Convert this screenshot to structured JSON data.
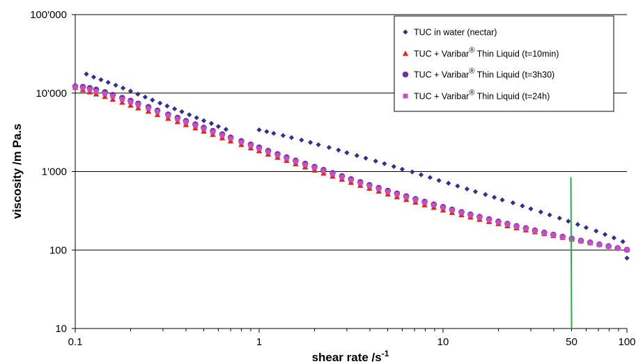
{
  "chart_data": {
    "type": "scatter",
    "xscale": "log",
    "yscale": "log",
    "xlim": [
      0.1,
      100
    ],
    "ylim": [
      10,
      100000
    ],
    "x_ticks": [
      0.1,
      1,
      10,
      50,
      100
    ],
    "x_tick_labels": [
      "0.1",
      "1",
      "10",
      "50",
      "100"
    ],
    "y_ticks": [
      10,
      100,
      1000,
      10000,
      100000
    ],
    "y_tick_labels": [
      "10",
      "100",
      "1'000",
      "10'000",
      "100'000"
    ],
    "xlabel": "shear rate /s",
    "xlabel_sup": "-1",
    "ylabel": "viscosity /m Pa.s",
    "grid": "horizontal",
    "legend_position": "top-right",
    "legend_text_registered": "®",
    "reference_line": {
      "x": 50,
      "y_from": 18,
      "y_to": 850,
      "color": "#22b14c"
    },
    "series": [
      {
        "name": "TUC in water (nectar)",
        "name_parts": [
          "TUC in water (nectar)"
        ],
        "marker": "diamond",
        "color": "#2e3192",
        "points": [
          [
            0.115,
            17500
          ],
          [
            0.126,
            16000
          ],
          [
            0.138,
            14800
          ],
          [
            0.151,
            13700
          ],
          [
            0.166,
            12600
          ],
          [
            0.182,
            11600
          ],
          [
            0.2,
            10600
          ],
          [
            0.219,
            9700
          ],
          [
            0.24,
            8900
          ],
          [
            0.263,
            8150
          ],
          [
            0.289,
            7450
          ],
          [
            0.316,
            6850
          ],
          [
            0.347,
            6300
          ],
          [
            0.38,
            5800
          ],
          [
            0.417,
            5300
          ],
          [
            0.457,
            4850
          ],
          [
            0.5,
            4450
          ],
          [
            0.55,
            4100
          ],
          [
            0.6,
            3750
          ],
          [
            0.66,
            3450
          ],
          [
            1.0,
            3400
          ],
          [
            1.1,
            3230
          ],
          [
            1.2,
            3070
          ],
          [
            1.35,
            2880
          ],
          [
            1.5,
            2710
          ],
          [
            1.7,
            2520
          ],
          [
            1.9,
            2350
          ],
          [
            2.1,
            2200
          ],
          [
            2.4,
            2030
          ],
          [
            2.7,
            1880
          ],
          [
            3.0,
            1740
          ],
          [
            3.4,
            1600
          ],
          [
            3.8,
            1480
          ],
          [
            4.3,
            1360
          ],
          [
            4.8,
            1260
          ],
          [
            5.4,
            1160
          ],
          [
            6.0,
            1070
          ],
          [
            6.8,
            990
          ],
          [
            7.6,
            910
          ],
          [
            8.5,
            840
          ],
          [
            9.5,
            770
          ],
          [
            10.7,
            710
          ],
          [
            12.0,
            655
          ],
          [
            13.5,
            600
          ],
          [
            15.0,
            555
          ],
          [
            17.0,
            510
          ],
          [
            19.0,
            470
          ],
          [
            21.0,
            435
          ],
          [
            24.0,
            400
          ],
          [
            27.0,
            365
          ],
          [
            30.0,
            335
          ],
          [
            34.0,
            305
          ],
          [
            38.0,
            280
          ],
          [
            43.0,
            255
          ],
          [
            48.0,
            233
          ],
          [
            54.0,
            212
          ],
          [
            60.0,
            193
          ],
          [
            68.0,
            175
          ],
          [
            76.0,
            158
          ],
          [
            85.0,
            143
          ],
          [
            95.0,
            128
          ],
          [
            100.0,
            79
          ]
        ]
      },
      {
        "name": "TUC + Varibar® Thin Liquid (t=10min)",
        "name_parts": [
          "TUC + Varibar",
          " Thin Liquid (t=10min)"
        ],
        "marker": "triangle",
        "color": "#e8231c",
        "points": [
          [
            0.1,
            11800
          ],
          [
            0.11,
            11000
          ],
          [
            0.12,
            10300
          ],
          [
            0.13,
            9700
          ],
          [
            0.145,
            9000
          ],
          [
            0.16,
            8300
          ],
          [
            0.18,
            7600
          ],
          [
            0.2,
            7000
          ],
          [
            0.22,
            6450
          ],
          [
            0.25,
            5850
          ],
          [
            0.28,
            5300
          ],
          [
            0.32,
            4750
          ],
          [
            0.36,
            4300
          ],
          [
            0.4,
            3950
          ],
          [
            0.45,
            3580
          ],
          [
            0.5,
            3260
          ],
          [
            0.56,
            2960
          ],
          [
            0.63,
            2680
          ],
          [
            0.7,
            2440
          ],
          [
            0.8,
            2200
          ],
          [
            0.9,
            1990
          ],
          [
            1.0,
            1830
          ],
          [
            1.12,
            1660
          ],
          [
            1.26,
            1510
          ],
          [
            1.41,
            1380
          ],
          [
            1.58,
            1250
          ],
          [
            1.78,
            1140
          ],
          [
            2.0,
            1040
          ],
          [
            2.24,
            950
          ],
          [
            2.51,
            870
          ],
          [
            2.82,
            795
          ],
          [
            3.16,
            725
          ],
          [
            3.55,
            665
          ],
          [
            3.98,
            610
          ],
          [
            4.47,
            560
          ],
          [
            5.01,
            515
          ],
          [
            5.62,
            475
          ],
          [
            6.31,
            438
          ],
          [
            7.08,
            405
          ],
          [
            7.94,
            375
          ],
          [
            8.91,
            348
          ],
          [
            10.0,
            322
          ],
          [
            11.2,
            300
          ],
          [
            12.6,
            280
          ],
          [
            14.1,
            262
          ],
          [
            15.8,
            245
          ],
          [
            17.8,
            230
          ],
          [
            20.0,
            216
          ],
          [
            22.4,
            203
          ],
          [
            25.1,
            191
          ],
          [
            28.2,
            180
          ],
          [
            31.6,
            170
          ],
          [
            35.5,
            161
          ],
          [
            39.8,
            152
          ],
          [
            44.7,
            144
          ],
          [
            50.1,
            137
          ],
          [
            56.2,
            130
          ],
          [
            63.1,
            123
          ],
          [
            70.8,
            117
          ],
          [
            79.4,
            111
          ],
          [
            89.1,
            106
          ],
          [
            100.0,
            101
          ]
        ]
      },
      {
        "name": "TUC + Varibar® Thin Liquid (t=3h30)",
        "name_parts": [
          "TUC + Varibar",
          " Thin Liquid (t=3h30)"
        ],
        "marker": "circle",
        "color": "#7030a0",
        "points": [
          [
            0.1,
            12200
          ],
          [
            0.11,
            12000
          ],
          [
            0.12,
            11600
          ],
          [
            0.13,
            11100
          ],
          [
            0.145,
            10300
          ],
          [
            0.16,
            9500
          ],
          [
            0.18,
            8700
          ],
          [
            0.2,
            8000
          ],
          [
            0.22,
            7350
          ],
          [
            0.25,
            6650
          ],
          [
            0.28,
            6000
          ],
          [
            0.32,
            5350
          ],
          [
            0.36,
            4850
          ],
          [
            0.4,
            4420
          ],
          [
            0.45,
            4000
          ],
          [
            0.5,
            3630
          ],
          [
            0.56,
            3300
          ],
          [
            0.63,
            2990
          ],
          [
            0.7,
            2720
          ],
          [
            0.8,
            2450
          ],
          [
            0.9,
            2210
          ],
          [
            1.0,
            2030
          ],
          [
            1.12,
            1840
          ],
          [
            1.26,
            1670
          ],
          [
            1.41,
            1520
          ],
          [
            1.58,
            1380
          ],
          [
            1.78,
            1260
          ],
          [
            2.0,
            1150
          ],
          [
            2.24,
            1050
          ],
          [
            2.51,
            960
          ],
          [
            2.82,
            875
          ],
          [
            3.16,
            800
          ],
          [
            3.55,
            735
          ],
          [
            3.98,
            675
          ],
          [
            4.47,
            620
          ],
          [
            5.01,
            570
          ],
          [
            5.62,
            525
          ],
          [
            6.31,
            485
          ],
          [
            7.08,
            447
          ],
          [
            7.94,
            413
          ],
          [
            8.91,
            382
          ],
          [
            10.0,
            354
          ],
          [
            11.2,
            328
          ],
          [
            12.6,
            305
          ],
          [
            14.1,
            284
          ],
          [
            15.8,
            265
          ],
          [
            17.8,
            247
          ],
          [
            20.0,
            231
          ],
          [
            22.4,
            216
          ],
          [
            25.1,
            202
          ],
          [
            28.2,
            190
          ],
          [
            31.6,
            178
          ],
          [
            35.5,
            167
          ],
          [
            39.8,
            157
          ],
          [
            44.7,
            148
          ],
          [
            50.1,
            140
          ],
          [
            56.2,
            132
          ],
          [
            63.1,
            125
          ],
          [
            70.8,
            118
          ],
          [
            79.4,
            112
          ],
          [
            89.1,
            106
          ],
          [
            100.0,
            101
          ]
        ]
      },
      {
        "name": "TUC + Varibar® Thin Liquid (t=24h)",
        "name_parts": [
          "TUC + Varibar",
          " Thin Liquid (t=24h)"
        ],
        "marker": "square",
        "color": "#c54fc4",
        "points": [
          [
            0.1,
            12000
          ],
          [
            0.11,
            11600
          ],
          [
            0.12,
            11100
          ],
          [
            0.13,
            10500
          ],
          [
            0.145,
            9800
          ],
          [
            0.16,
            9100
          ],
          [
            0.18,
            8350
          ],
          [
            0.2,
            7700
          ],
          [
            0.22,
            7100
          ],
          [
            0.25,
            6400
          ],
          [
            0.28,
            5800
          ],
          [
            0.32,
            5180
          ],
          [
            0.36,
            4680
          ],
          [
            0.4,
            4270
          ],
          [
            0.45,
            3870
          ],
          [
            0.5,
            3510
          ],
          [
            0.56,
            3190
          ],
          [
            0.63,
            2890
          ],
          [
            0.7,
            2630
          ],
          [
            0.8,
            2370
          ],
          [
            0.9,
            2140
          ],
          [
            1.0,
            1960
          ],
          [
            1.12,
            1780
          ],
          [
            1.26,
            1620
          ],
          [
            1.41,
            1470
          ],
          [
            1.58,
            1340
          ],
          [
            1.78,
            1220
          ],
          [
            2.0,
            1115
          ],
          [
            2.24,
            1020
          ],
          [
            2.51,
            930
          ],
          [
            2.82,
            850
          ],
          [
            3.16,
            778
          ],
          [
            3.55,
            713
          ],
          [
            3.98,
            655
          ],
          [
            4.47,
            602
          ],
          [
            5.01,
            554
          ],
          [
            5.62,
            511
          ],
          [
            6.31,
            472
          ],
          [
            7.08,
            436
          ],
          [
            7.94,
            403
          ],
          [
            8.91,
            373
          ],
          [
            10.0,
            346
          ],
          [
            11.2,
            321
          ],
          [
            12.6,
            299
          ],
          [
            14.1,
            278
          ],
          [
            15.8,
            259
          ],
          [
            17.8,
            242
          ],
          [
            20.0,
            226
          ],
          [
            22.4,
            212
          ],
          [
            25.1,
            199
          ],
          [
            28.2,
            187
          ],
          [
            31.6,
            175
          ],
          [
            35.5,
            165
          ],
          [
            39.8,
            155
          ],
          [
            44.7,
            146
          ],
          [
            50.1,
            138
          ],
          [
            56.2,
            131
          ],
          [
            63.1,
            124
          ],
          [
            70.8,
            117
          ],
          [
            79.4,
            111
          ],
          [
            89.1,
            106
          ],
          [
            100.0,
            101
          ]
        ]
      }
    ]
  }
}
